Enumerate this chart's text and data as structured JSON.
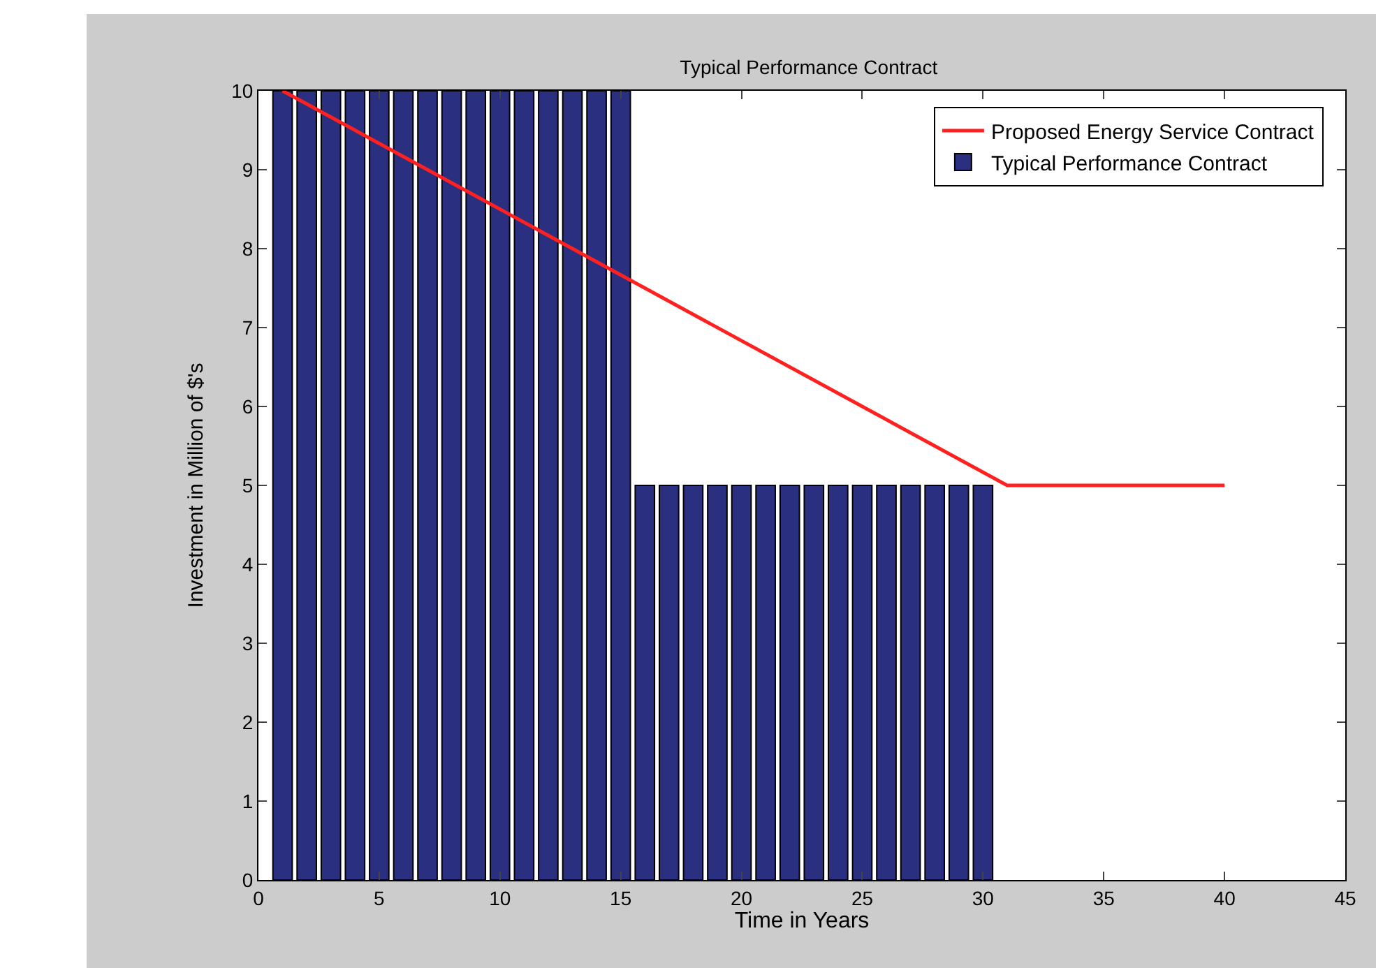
{
  "chart_data": {
    "type": "bar",
    "title": "Typical Performance Contract",
    "xlabel": "Time in Years",
    "ylabel": "Investment in Million of $'s",
    "xlim": [
      0,
      45
    ],
    "xticks": [
      0,
      5,
      10,
      15,
      20,
      25,
      30,
      35,
      40,
      45
    ],
    "ylim": [
      0,
      10
    ],
    "yticks": [
      0,
      1,
      2,
      3,
      4,
      5,
      6,
      7,
      8,
      9,
      10
    ],
    "grid": false,
    "legend": "top right",
    "series": [
      {
        "name": "Proposed Energy Service Contract",
        "type": "line",
        "color": "#ff2020",
        "x": [
          1,
          31,
          40
        ],
        "values": [
          10,
          5,
          5
        ]
      },
      {
        "name": "Typical Performance Contract",
        "color": "#2b2f7f",
        "x": [
          1,
          2,
          3,
          4,
          5,
          6,
          7,
          8,
          9,
          10,
          11,
          12,
          13,
          14,
          15,
          16,
          17,
          18,
          19,
          20,
          21,
          22,
          23,
          24,
          25,
          26,
          27,
          28,
          29,
          30
        ],
        "values": [
          10,
          10,
          10,
          10,
          10,
          10,
          10,
          10,
          10,
          10,
          10,
          10,
          10,
          10,
          10,
          5,
          5,
          5,
          5,
          5,
          5,
          5,
          5,
          5,
          5,
          5,
          5,
          5,
          5,
          5
        ]
      }
    ]
  }
}
